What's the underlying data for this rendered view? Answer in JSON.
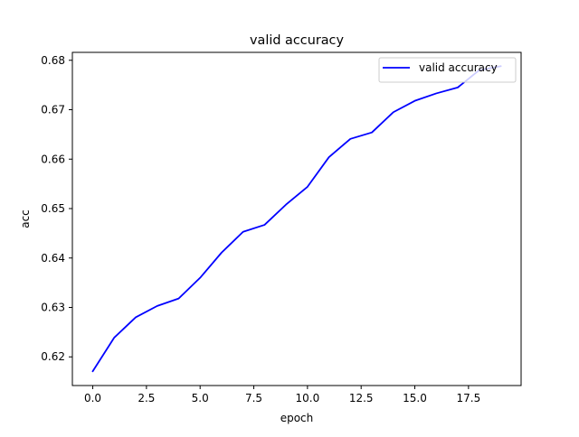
{
  "chart_data": {
    "type": "line",
    "title": "valid accuracy",
    "xlabel": "epoch",
    "ylabel": "acc",
    "xlim": [
      -0.95,
      19.95
    ],
    "ylim": [
      0.6142,
      0.6816
    ],
    "xticks": [
      0.0,
      2.5,
      5.0,
      7.5,
      10.0,
      12.5,
      15.0,
      17.5
    ],
    "xtick_labels": [
      "0.0",
      "2.5",
      "5.0",
      "7.5",
      "10.0",
      "12.5",
      "15.0",
      "17.5"
    ],
    "yticks": [
      0.62,
      0.63,
      0.64,
      0.65,
      0.66,
      0.67,
      0.68
    ],
    "ytick_labels": [
      "0.62",
      "0.63",
      "0.64",
      "0.65",
      "0.66",
      "0.67",
      "0.68"
    ],
    "grid": false,
    "legend_position": "top-right",
    "series": [
      {
        "name": "valid accuracy",
        "color": "#0000ff",
        "x": [
          0,
          1,
          2,
          3,
          4,
          5,
          6,
          7,
          8,
          9,
          10,
          11,
          12,
          13,
          14,
          15,
          16,
          17,
          18,
          19
        ],
        "y": [
          0.6171,
          0.6239,
          0.628,
          0.6303,
          0.6318,
          0.636,
          0.6411,
          0.6453,
          0.6467,
          0.6508,
          0.6544,
          0.6604,
          0.6641,
          0.6654,
          0.6695,
          0.6718,
          0.6733,
          0.6745,
          0.678,
          0.6788
        ]
      }
    ]
  }
}
